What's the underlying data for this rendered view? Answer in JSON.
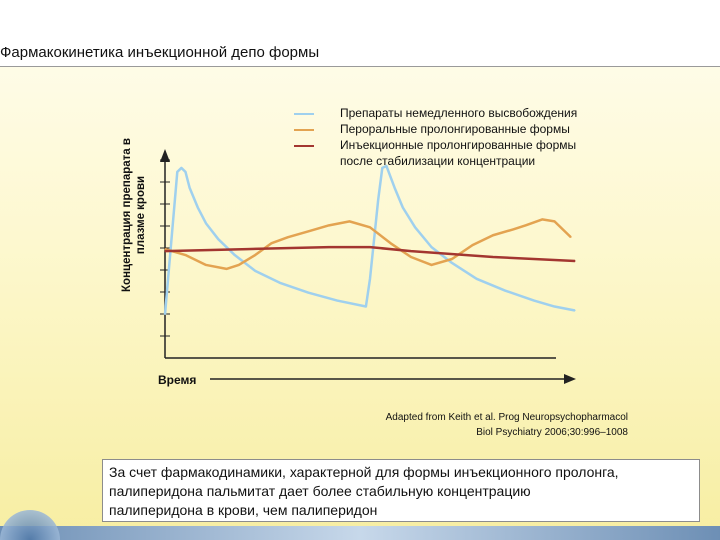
{
  "slide": {
    "title": "Фармакокинетика инъекционной депо формы",
    "caption_lines": [
      "За счет фармакодинамики, характерной для формы инъекционного пролонга,",
      "палиперидона пальмитат дает более стабильную концентрацию",
      "палиперидона в крови, чем палиперидон"
    ],
    "citation_lines": [
      "Adapted from Keith et al. Prog Neuropsychopharmacol",
      "Biol Psychiatry 2006;30:996–1008"
    ]
  },
  "chart_data": {
    "type": "line",
    "title": "",
    "xlabel": "Время",
    "ylabel_lines": [
      "Концентрация препарата в",
      "плазме крови"
    ],
    "ylabel": "Концентрация препарата в плазме крови",
    "xlim": [
      0,
      100
    ],
    "ylim": [
      0,
      100
    ],
    "grid": false,
    "legend_position": "top",
    "legend_continuation": "после стабилизации концентрации",
    "series": [
      {
        "name": "Препараты немедленного высвобождения",
        "color": "#9fd0ee",
        "x": [
          0,
          2,
          3,
          4,
          5,
          6,
          8,
          10,
          13,
          17,
          22,
          28,
          35,
          42,
          49,
          50,
          51,
          52,
          53,
          54,
          56,
          58,
          61,
          65,
          70,
          76,
          83,
          90,
          95,
          100
        ],
        "y": [
          22,
          70,
          94,
          96,
          94,
          86,
          76,
          68,
          60,
          52,
          44,
          38,
          33,
          29,
          26,
          40,
          60,
          80,
          96,
          97,
          86,
          76,
          66,
          56,
          48,
          40,
          34,
          29,
          26,
          24
        ]
      },
      {
        "name": "Пероральные пролонгированные формы",
        "color": "#e3a351",
        "x": [
          0,
          5,
          10,
          15,
          18,
          22,
          26,
          30,
          35,
          40,
          45,
          50,
          55,
          60,
          65,
          70,
          75,
          80,
          85,
          88,
          92,
          95,
          99
        ],
        "y": [
          55,
          52,
          47,
          45,
          47,
          52,
          58,
          61,
          64,
          67,
          69,
          66,
          58,
          51,
          47,
          50,
          57,
          62,
          65,
          67,
          70,
          69,
          61
        ]
      },
      {
        "name": "Инъекционные пролонгированные формы",
        "color": "#a33630",
        "x": [
          0,
          20,
          40,
          50,
          60,
          80,
          100
        ],
        "y": [
          54,
          55,
          56,
          56,
          54,
          51,
          49
        ]
      }
    ]
  }
}
